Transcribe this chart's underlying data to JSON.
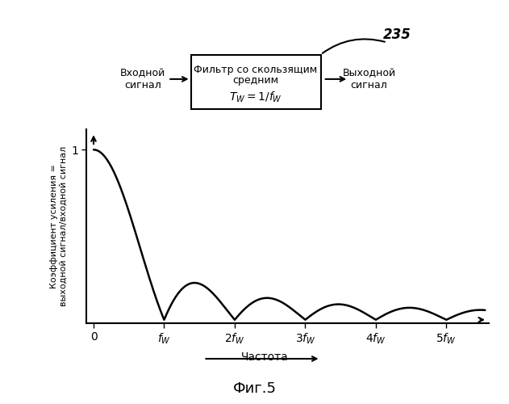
{
  "title": "Фиг.5",
  "ylabel": "Коэффициент усиления =\nвыходной сигнал/входной сигнал",
  "xlabel_arrow": "Частота",
  "x_tick_labels": [
    "0",
    "$f_W$",
    "$2f_W$",
    "$3f_W$",
    "$4f_W$",
    "$5f_W$"
  ],
  "y_tick_label": "1",
  "diagram_label": "235",
  "box_line1": "Фильтр со скользящим",
  "box_line2": "средним",
  "box_line3": "$T_W= 1/f_W$",
  "input_label": "Входной\nсигнал",
  "output_label": "Выходной\nсигнал",
  "bg_color": "#ffffff",
  "line_color": "#000000",
  "fig_width": 6.31,
  "fig_height": 5.0,
  "dpi": 100
}
